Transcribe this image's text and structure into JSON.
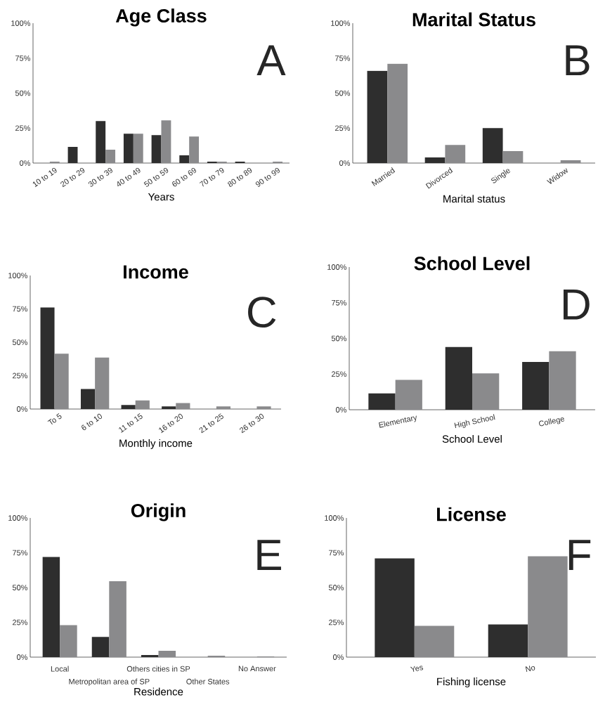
{
  "chart_data": [
    {
      "type": "bar",
      "title": "Age Class",
      "xlabel": "Years",
      "annotations": [
        "A"
      ],
      "categories": [
        "10 to 19",
        "20 to 29",
        "30 to 39",
        "40 to 49",
        "50 to 59",
        "60 to 69",
        "70 to 79",
        "80 to 89",
        "90 to 99"
      ],
      "series": [
        {
          "color": "#2e2e2e",
          "values": [
            0,
            11.5,
            30,
            21,
            20,
            5.5,
            1,
            1,
            0
          ]
        },
        {
          "color": "#8a8a8c",
          "values": [
            1,
            0,
            9.5,
            21,
            30.5,
            19,
            1,
            0,
            1
          ]
        }
      ],
      "ylim": [
        0,
        100
      ],
      "yticks": [
        {
          "value": 0,
          "label": "0%"
        },
        {
          "value": 25,
          "label": "25%"
        },
        {
          "value": 50,
          "label": "50%"
        },
        {
          "value": 75,
          "label": "75%"
        },
        {
          "value": 100,
          "label": "100%"
        }
      ]
    },
    {
      "type": "bar",
      "title": "Marital Status",
      "xlabel": "Marital status",
      "annotations": [
        "B"
      ],
      "categories": [
        "Married",
        "Divorced",
        "Single",
        "Widow"
      ],
      "series": [
        {
          "color": "#2e2e2e",
          "values": [
            66,
            4,
            25,
            0
          ]
        },
        {
          "color": "#8a8a8c",
          "values": [
            71,
            13,
            8.5,
            2
          ]
        }
      ],
      "ylim": [
        0,
        100
      ],
      "yticks": [
        {
          "value": 0,
          "label": "0%"
        },
        {
          "value": 25,
          "label": "25%"
        },
        {
          "value": 50,
          "label": "50%"
        },
        {
          "value": 75,
          "label": "75%"
        },
        {
          "value": 100,
          "label": "100%"
        }
      ]
    },
    {
      "type": "bar",
      "title": "Income",
      "xlabel": "Monthly income",
      "annotations": [
        "C"
      ],
      "categories": [
        "To 5",
        "6 to 10",
        "11 to 15",
        "16 to 20",
        "21 to 25",
        "26 to 30"
      ],
      "series": [
        {
          "color": "#2e2e2e",
          "values": [
            76,
            15,
            3,
            2,
            0,
            0
          ]
        },
        {
          "color": "#8a8a8c",
          "values": [
            41.5,
            38.5,
            6.5,
            4.5,
            2,
            2
          ]
        }
      ],
      "ylim": [
        0,
        100
      ],
      "yticks": [
        {
          "value": 0,
          "label": "0%"
        },
        {
          "value": 25,
          "label": "25%"
        },
        {
          "value": 50,
          "label": "50%"
        },
        {
          "value": 75,
          "label": "75%"
        },
        {
          "value": 100,
          "label": "100%"
        }
      ]
    },
    {
      "type": "bar",
      "title": "School Level",
      "xlabel": "School Level",
      "annotations": [
        "D"
      ],
      "categories": [
        "Elementary",
        "High School",
        "College"
      ],
      "series": [
        {
          "color": "#2e2e2e",
          "values": [
            11.5,
            44,
            33.5
          ]
        },
        {
          "color": "#8a8a8c",
          "values": [
            21,
            25.5,
            41
          ]
        }
      ],
      "ylim": [
        0,
        100
      ],
      "yticks": [
        {
          "value": 0,
          "label": "0%"
        },
        {
          "value": 25,
          "label": "25%"
        },
        {
          "value": 50,
          "label": "50%"
        },
        {
          "value": 75,
          "label": "75%"
        },
        {
          "value": 100,
          "label": "100%"
        }
      ]
    },
    {
      "type": "bar",
      "title": "Origin",
      "xlabel": "Residence",
      "annotations": [
        "E"
      ],
      "categories": [
        "Local",
        "Metropolitan area of SP",
        "Others cities in SP",
        "Other States",
        "No Answer"
      ],
      "series": [
        {
          "color": "#2e2e2e",
          "values": [
            72,
            14.5,
            1.5,
            0,
            0
          ]
        },
        {
          "color": "#8a8a8c",
          "values": [
            23,
            54.5,
            4.5,
            1,
            0.5
          ]
        }
      ],
      "ylim": [
        0,
        100
      ],
      "yticks": [
        {
          "value": 0,
          "label": "0%"
        },
        {
          "value": 25,
          "label": "25%"
        },
        {
          "value": 50,
          "label": "50%"
        },
        {
          "value": 75,
          "label": "75%"
        },
        {
          "value": 100,
          "label": "100%"
        }
      ]
    },
    {
      "type": "bar",
      "title": "License",
      "xlabel": "Fishing license",
      "annotations": [
        "F"
      ],
      "categories": [
        "Yes",
        "No"
      ],
      "series": [
        {
          "color": "#2e2e2e",
          "values": [
            71,
            23.5
          ]
        },
        {
          "color": "#8a8a8c",
          "values": [
            22.5,
            72.5
          ]
        }
      ],
      "ylim": [
        0,
        100
      ],
      "yticks": [
        {
          "value": 0,
          "label": "0%"
        },
        {
          "value": 25,
          "label": "25%"
        },
        {
          "value": 50,
          "label": "50%"
        },
        {
          "value": 75,
          "label": "75%"
        },
        {
          "value": 100,
          "label": "100%"
        }
      ]
    }
  ]
}
